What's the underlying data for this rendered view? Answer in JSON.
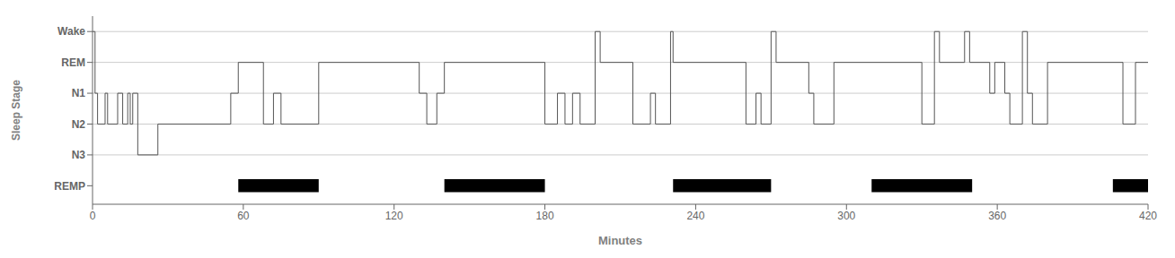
{
  "chart_data": {
    "type": "line",
    "title": "",
    "xlabel": "Minutes",
    "ylabel": "Sleep Stage",
    "xlim": [
      0,
      420
    ],
    "xticks": [
      0,
      60,
      120,
      180,
      240,
      300,
      360,
      420
    ],
    "ylim": [
      -0.6,
      5.5
    ],
    "yticks": [
      {
        "value": 0,
        "label": "REMP"
      },
      {
        "value": 1,
        "label": "N3"
      },
      {
        "value": 2,
        "label": "N2"
      },
      {
        "value": 3,
        "label": "N1"
      },
      {
        "value": 4,
        "label": "REM"
      },
      {
        "value": 5,
        "label": "Wake"
      }
    ],
    "grid": true,
    "series": [
      {
        "type": "line",
        "color": "#555555",
        "x": [
          0,
          1,
          1,
          2,
          2,
          5,
          5,
          6,
          6,
          10,
          10,
          12,
          12,
          14,
          14,
          15,
          15,
          16,
          16,
          18,
          18,
          26,
          26,
          55,
          55,
          58,
          58,
          68,
          68,
          72,
          72,
          75,
          75,
          90,
          90,
          130,
          130,
          133,
          133,
          137,
          137,
          140,
          140,
          180,
          180,
          185,
          185,
          188,
          188,
          191,
          191,
          194,
          194,
          200,
          200,
          202,
          202,
          215,
          215,
          222,
          222,
          224,
          224,
          230,
          230,
          231,
          231,
          260,
          260,
          264,
          264,
          266,
          266,
          270,
          270,
          272,
          272,
          285,
          285,
          287,
          287,
          295,
          295,
          330,
          330,
          335,
          335,
          337,
          337,
          347,
          347,
          349,
          349,
          357,
          357,
          359,
          359,
          363,
          363,
          365,
          365,
          370,
          370,
          372,
          372,
          374,
          374,
          380,
          380,
          410,
          410,
          415,
          415,
          420
        ],
        "values": [
          5,
          5,
          3,
          3,
          2,
          2,
          3,
          3,
          2,
          2,
          3,
          3,
          2,
          2,
          3,
          3,
          2,
          2,
          3,
          3,
          1,
          1,
          2,
          2,
          3,
          3,
          4,
          4,
          2,
          2,
          3,
          3,
          2,
          2,
          4,
          4,
          3,
          3,
          2,
          2,
          3,
          3,
          4,
          4,
          2,
          2,
          3,
          3,
          2,
          2,
          3,
          3,
          2,
          2,
          5,
          5,
          4,
          4,
          2,
          2,
          3,
          3,
          2,
          2,
          5,
          5,
          4,
          4,
          2,
          2,
          3,
          3,
          2,
          2,
          5,
          5,
          4,
          4,
          3,
          3,
          2,
          2,
          4,
          4,
          2,
          2,
          5,
          5,
          4,
          4,
          5,
          5,
          4,
          4,
          3,
          3,
          4,
          4,
          3,
          3,
          2,
          2,
          5,
          5,
          3,
          3,
          2,
          2,
          4,
          4,
          2,
          2,
          4,
          4
        ]
      },
      {
        "type": "bar",
        "color": "#000000",
        "values": [
          0,
          0,
          0,
          0,
          0
        ],
        "x_ranges": [
          [
            58,
            90
          ],
          [
            140,
            180
          ],
          [
            231,
            270
          ],
          [
            310,
            350
          ],
          [
            406,
            420
          ]
        ]
      }
    ]
  }
}
